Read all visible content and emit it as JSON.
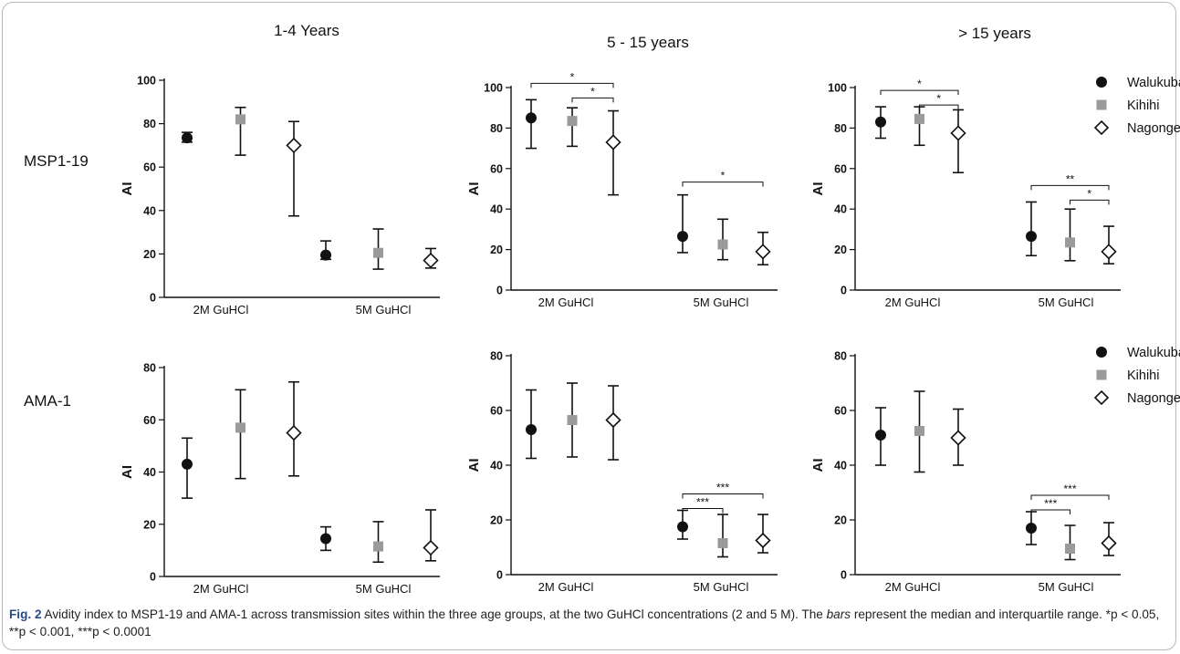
{
  "figure": {
    "caption_label": "Fig. 2",
    "caption_text": "  Avidity index to MSP1-19 and AMA-1 across transmission sites within the three age groups, at the two GuHCl concentrations (2 and 5 M). The ",
    "caption_italic": "bars",
    "caption_text2": " represent the median and interquartile range. *p < 0.05, **p < 0.001, ***p < 0.0001"
  },
  "column_titles": [
    "1-4 Years",
    "5 - 15 years",
    "> 15 years"
  ],
  "row_labels": [
    "MSP1-19",
    "AMA-1"
  ],
  "legend": [
    "Walukuba",
    "Kihihi",
    "Nagongera"
  ],
  "chart_data": [
    {
      "type": "scatter",
      "panel": "MSP1-19, 1-4 Years",
      "ylabel": "AI",
      "ylim": [
        0,
        100
      ],
      "yticks": [
        0,
        20,
        40,
        60,
        80,
        100
      ],
      "categories": [
        "2M GuHCl",
        "5M GuHCl"
      ],
      "series": [
        {
          "name": "Walukuba",
          "median": [
            73.5,
            19.5
          ],
          "q1": [
            71.5,
            17.5
          ],
          "q3": [
            76.0,
            26.0
          ]
        },
        {
          "name": "Kihihi",
          "median": [
            82.0,
            20.5
          ],
          "q1": [
            65.5,
            13.0
          ],
          "q3": [
            87.5,
            31.5
          ]
        },
        {
          "name": "Nagongera",
          "median": [
            70.0,
            17.0
          ],
          "q1": [
            37.5,
            13.5
          ],
          "q3": [
            81.0,
            22.5
          ]
        }
      ],
      "significance": []
    },
    {
      "type": "scatter",
      "panel": "MSP1-19, 5 - 15 years",
      "ylabel": "AI",
      "ylim": [
        0,
        100
      ],
      "yticks": [
        0,
        20,
        40,
        60,
        80,
        100
      ],
      "categories": [
        "2M GuHCl",
        "5M GuHCl"
      ],
      "series": [
        {
          "name": "Walukuba",
          "median": [
            85.0,
            26.5
          ],
          "q1": [
            70.0,
            18.5
          ],
          "q3": [
            94.0,
            47.0
          ]
        },
        {
          "name": "Kihihi",
          "median": [
            83.5,
            22.5
          ],
          "q1": [
            71.0,
            15.0
          ],
          "q3": [
            90.0,
            35.0
          ]
        },
        {
          "name": "Nagongera",
          "median": [
            73.0,
            19.0
          ],
          "q1": [
            47.0,
            12.5
          ],
          "q3": [
            88.5,
            28.5
          ]
        }
      ],
      "significance": [
        {
          "group": 0,
          "from": 0,
          "to": 2,
          "label": "*"
        },
        {
          "group": 0,
          "from": 1,
          "to": 2,
          "label": "*"
        },
        {
          "group": 1,
          "from": 0,
          "to": 2,
          "label": "*"
        }
      ]
    },
    {
      "type": "scatter",
      "panel": "MSP1-19, > 15 years",
      "ylabel": "AI",
      "ylim": [
        0,
        100
      ],
      "yticks": [
        0,
        20,
        40,
        60,
        80,
        100
      ],
      "categories": [
        "2M GuHCl",
        "5M GuHCl"
      ],
      "series": [
        {
          "name": "Walukuba",
          "median": [
            83.0,
            26.5
          ],
          "q1": [
            75.0,
            17.0
          ],
          "q3": [
            90.5,
            43.5
          ]
        },
        {
          "name": "Kihihi",
          "median": [
            84.5,
            23.5
          ],
          "q1": [
            71.5,
            14.5
          ],
          "q3": [
            90.5,
            40.0
          ]
        },
        {
          "name": "Nagongera",
          "median": [
            77.5,
            19.0
          ],
          "q1": [
            58.0,
            13.0
          ],
          "q3": [
            89.0,
            31.5
          ]
        }
      ],
      "significance": [
        {
          "group": 0,
          "from": 0,
          "to": 2,
          "label": "*"
        },
        {
          "group": 0,
          "from": 1,
          "to": 2,
          "label": "*"
        },
        {
          "group": 1,
          "from": 0,
          "to": 2,
          "label": "**"
        },
        {
          "group": 1,
          "from": 1,
          "to": 2,
          "label": "*"
        }
      ]
    },
    {
      "type": "scatter",
      "panel": "AMA-1, 1-4 Years",
      "ylabel": "AI",
      "ylim": [
        0,
        80
      ],
      "yticks": [
        0,
        20,
        40,
        60,
        80
      ],
      "categories": [
        "2M GuHCl",
        "5M GuHCl"
      ],
      "series": [
        {
          "name": "Walukuba",
          "median": [
            43.0,
            14.5
          ],
          "q1": [
            30.0,
            10.0
          ],
          "q3": [
            53.0,
            19.0
          ]
        },
        {
          "name": "Kihihi",
          "median": [
            57.0,
            11.5
          ],
          "q1": [
            37.5,
            5.5
          ],
          "q3": [
            71.5,
            21.0
          ]
        },
        {
          "name": "Nagongera",
          "median": [
            55.0,
            11.0
          ],
          "q1": [
            38.5,
            6.0
          ],
          "q3": [
            74.5,
            25.5
          ]
        }
      ],
      "significance": []
    },
    {
      "type": "scatter",
      "panel": "AMA-1, 5 - 15 years",
      "ylabel": "AI",
      "ylim": [
        0,
        80
      ],
      "yticks": [
        0,
        20,
        40,
        60,
        80
      ],
      "categories": [
        "2M GuHCl",
        "5M GuHCl"
      ],
      "series": [
        {
          "name": "Walukuba",
          "median": [
            53.0,
            17.5
          ],
          "q1": [
            42.5,
            13.0
          ],
          "q3": [
            67.5,
            23.5
          ]
        },
        {
          "name": "Kihihi",
          "median": [
            56.5,
            11.5
          ],
          "q1": [
            43.0,
            6.5
          ],
          "q3": [
            70.0,
            22.0
          ]
        },
        {
          "name": "Nagongera",
          "median": [
            56.5,
            12.5
          ],
          "q1": [
            42.0,
            8.0
          ],
          "q3": [
            69.0,
            22.0
          ]
        }
      ],
      "significance": [
        {
          "group": 1,
          "from": 0,
          "to": 1,
          "label": "***"
        },
        {
          "group": 1,
          "from": 0,
          "to": 2,
          "label": "***"
        }
      ]
    },
    {
      "type": "scatter",
      "panel": "AMA-1, > 15 years",
      "ylabel": "AI",
      "ylim": [
        0,
        80
      ],
      "yticks": [
        0,
        20,
        40,
        60,
        80
      ],
      "categories": [
        "2M GuHCl",
        "5M GuHCl"
      ],
      "series": [
        {
          "name": "Walukuba",
          "median": [
            51.0,
            17.0
          ],
          "q1": [
            40.0,
            11.0
          ],
          "q3": [
            61.0,
            23.0
          ]
        },
        {
          "name": "Kihihi",
          "median": [
            52.5,
            9.5
          ],
          "q1": [
            37.5,
            5.5
          ],
          "q3": [
            67.0,
            18.0
          ]
        },
        {
          "name": "Nagongera",
          "median": [
            50.0,
            11.5
          ],
          "q1": [
            40.0,
            7.0
          ],
          "q3": [
            60.5,
            19.0
          ]
        }
      ],
      "significance": [
        {
          "group": 1,
          "from": 0,
          "to": 1,
          "label": "***"
        },
        {
          "group": 1,
          "from": 0,
          "to": 2,
          "label": "***"
        }
      ]
    }
  ]
}
